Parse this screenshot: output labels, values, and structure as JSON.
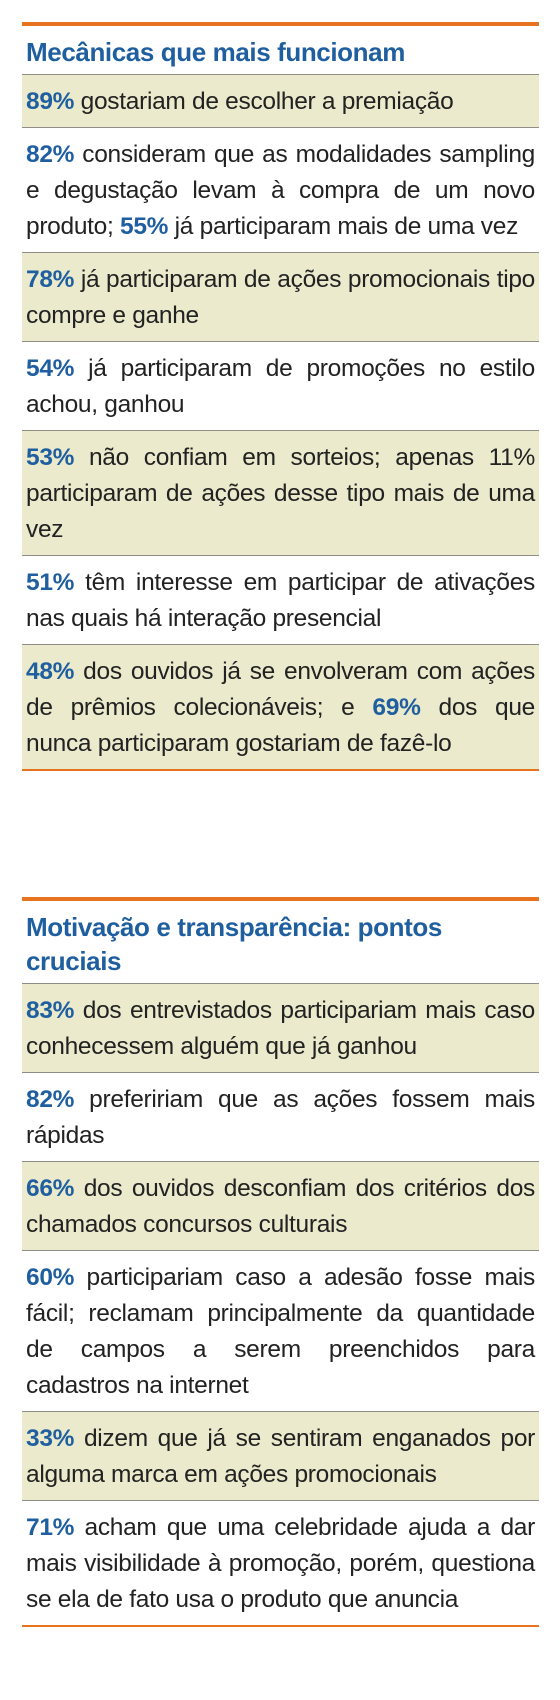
{
  "sections": [
    {
      "title": "Mecânicas que mais funcionam",
      "items": [
        {
          "shaded": true,
          "parts": [
            {
              "b": "89%"
            },
            {
              "t": " gostariam de escolher a premiação"
            }
          ]
        },
        {
          "shaded": false,
          "parts": [
            {
              "b": "82%"
            },
            {
              "t": " consideram que as modalidades sampling e degustação levam à compra de um novo produto; "
            },
            {
              "b": "55%"
            },
            {
              "t": " já participa­ram mais de uma vez"
            }
          ]
        },
        {
          "shaded": true,
          "parts": [
            {
              "b": "78%"
            },
            {
              "t": " já participaram de ações promocio­nais tipo compre e ganhe"
            }
          ]
        },
        {
          "shaded": false,
          "parts": [
            {
              "b": "54%"
            },
            {
              "t": " já participaram de promoções no estilo achou, ganhou"
            }
          ]
        },
        {
          "shaded": true,
          "parts": [
            {
              "b": "53%"
            },
            {
              "t": " não confiam em sorteios; apenas 11% participaram de ações desse tipo mais de uma vez"
            }
          ]
        },
        {
          "shaded": false,
          "parts": [
            {
              "b": "51%"
            },
            {
              "t": " têm interesse em participar de ati­vações nas quais há interação presencial"
            }
          ]
        },
        {
          "shaded": true,
          "parts": [
            {
              "b": "48%"
            },
            {
              "t": " dos ouvidos já se envolveram com ações de prêmios colecionáveis; e "
            },
            {
              "b": "69%"
            },
            {
              "t": " dos que nunca participaram gostariam de fazê-lo"
            }
          ]
        }
      ]
    },
    {
      "title": "Motivação e transparência: pontos cruciais",
      "items": [
        {
          "shaded": true,
          "parts": [
            {
              "b": "83%"
            },
            {
              "t": " dos entrevistados participariam mais caso conhecessem alguém que já ganhou"
            }
          ]
        },
        {
          "shaded": false,
          "parts": [
            {
              "b": "82%"
            },
            {
              "t": " prefeririam que as ações fossem mais rápidas"
            }
          ]
        },
        {
          "shaded": true,
          "parts": [
            {
              "b": "66%"
            },
            {
              "t": " dos ouvidos desconfiam dos crité­rios dos chamados concursos culturais"
            }
          ]
        },
        {
          "shaded": false,
          "parts": [
            {
              "b": "60%"
            },
            {
              "t": " participariam caso a adesão fosse mais fácil; reclamam principalmente da quantidade de campos a serem preenchi­dos para cadastros na internet"
            }
          ]
        },
        {
          "shaded": true,
          "parts": [
            {
              "b": "33%"
            },
            {
              "t": " dizem que já se sentiram enga­nados por alguma marca em ações promocionais"
            }
          ]
        },
        {
          "shaded": false,
          "parts": [
            {
              "b": "71%"
            },
            {
              "t": " acham que uma celebridade ajuda a dar mais visibilidade à promoção, porém, questiona se ela de fato usa o produto que anuncia"
            }
          ]
        }
      ]
    }
  ]
}
